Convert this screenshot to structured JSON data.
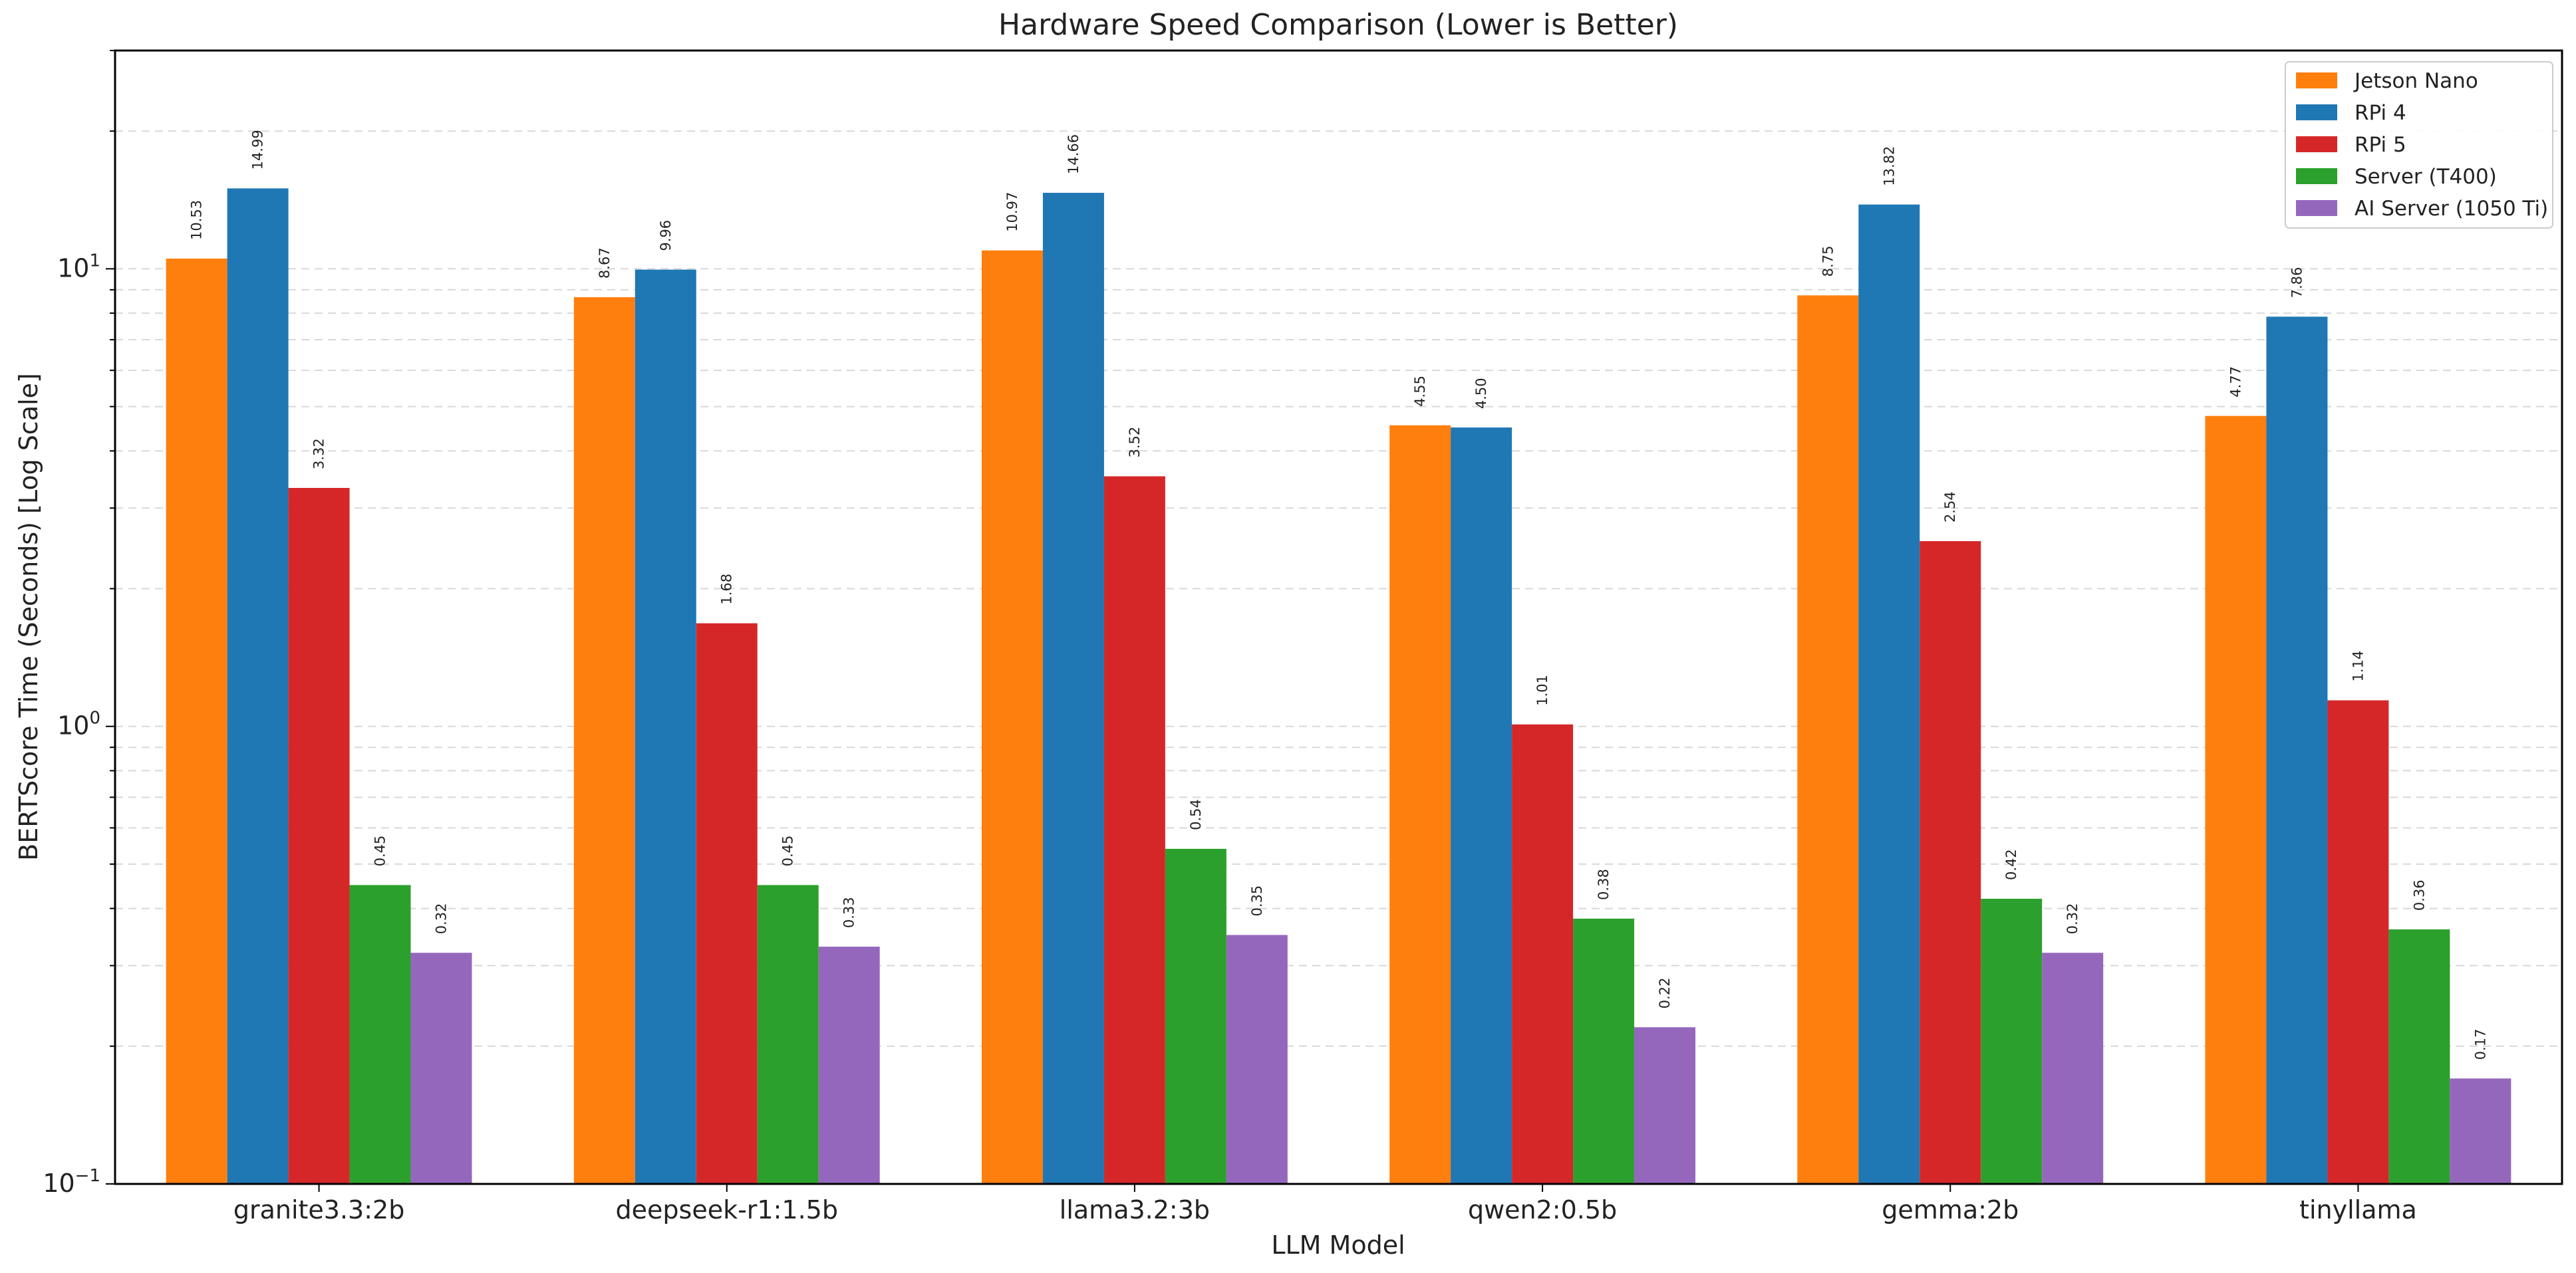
{
  "chart_data": {
    "type": "bar",
    "title": "Hardware Speed Comparison (Lower is Better)",
    "xlabel": "LLM Model",
    "ylabel": "BERTScore Time (Seconds) [Log Scale]",
    "yscale": "log",
    "ylim": [
      0.1,
      30
    ],
    "ytick_values": [
      0.1,
      1,
      10
    ],
    "grid": "y-major-and-minor-dashed",
    "legend_position": "top-right",
    "bar_label_format": "2 decimals, rotated 90",
    "categories": [
      "granite3.3:2b",
      "deepseek-r1:1.5b",
      "llama3.2:3b",
      "qwen2:0.5b",
      "gemma:2b",
      "tinyllama"
    ],
    "series": [
      {
        "name": "Jetson Nano",
        "color": "#ff7f0e",
        "values": [
          10.53,
          8.67,
          10.97,
          4.55,
          8.75,
          4.77
        ]
      },
      {
        "name": "RPi 4",
        "color": "#1f77b4",
        "values": [
          14.99,
          9.96,
          14.66,
          4.5,
          13.82,
          7.86
        ]
      },
      {
        "name": "RPi 5",
        "color": "#d62728",
        "values": [
          3.32,
          1.68,
          3.52,
          1.01,
          2.54,
          1.14
        ]
      },
      {
        "name": "Server (T400)",
        "color": "#2ca02c",
        "values": [
          0.45,
          0.45,
          0.54,
          0.38,
          0.42,
          0.36
        ]
      },
      {
        "name": "AI Server (1050 Ti)",
        "color": "#9467bd",
        "values": [
          0.32,
          0.33,
          0.35,
          0.22,
          0.32,
          0.17
        ]
      }
    ]
  }
}
